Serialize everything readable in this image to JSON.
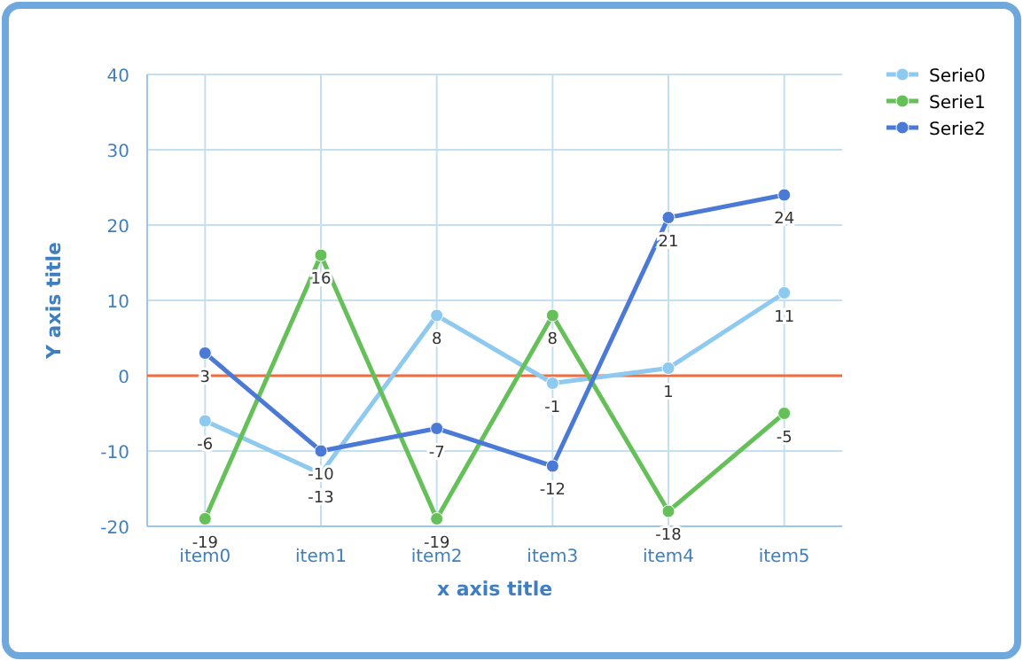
{
  "chart_data": {
    "type": "line",
    "xlabel": "x axis title",
    "ylabel": "Y axis title",
    "categories": [
      "item0",
      "item1",
      "item2",
      "item3",
      "item4",
      "item5"
    ],
    "series": [
      {
        "name": "Serie0",
        "color": "#8ec9f0",
        "values": [
          -6,
          -13,
          8,
          -1,
          1,
          11
        ]
      },
      {
        "name": "Serie1",
        "color": "#66c05a",
        "values": [
          -19,
          16,
          -19,
          8,
          -18,
          -5
        ]
      },
      {
        "name": "Serie2",
        "color": "#4a7ad6",
        "values": [
          3,
          -10,
          -7,
          -12,
          21,
          24
        ]
      }
    ],
    "ylim": [
      -20,
      40
    ],
    "yticks": [
      -20,
      -10,
      0,
      10,
      20,
      30,
      40
    ],
    "grid": true,
    "legend": "top right",
    "marker": "circle",
    "line_style": "solid",
    "data_labels": true,
    "ref_lines": [
      {
        "axis": "y",
        "value": 0,
        "color": "#f26b3a"
      }
    ]
  }
}
